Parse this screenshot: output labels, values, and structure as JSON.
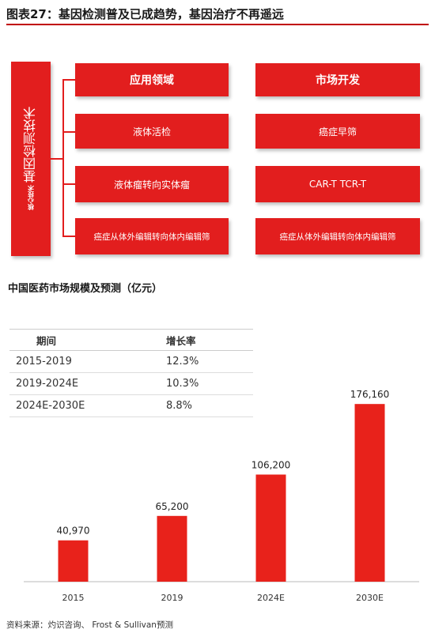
{
  "figure_title": "图表27：基因检测普及已成趋势，基因治疗不再遥远",
  "diagram": {
    "side_label_small": "核心技术",
    "side_label": "基因检测技术",
    "col1_header": "应用领域",
    "col2_header": "市场开发",
    "rows": [
      {
        "left": "液体活检",
        "right": "癌症早筛"
      },
      {
        "left": "液体瘤转向实体瘤",
        "right": "CAR-T   TCR-T"
      },
      {
        "left": "癌症从体外编辑转向体内编辑筛",
        "right": "癌症从体外编辑转向体内编辑筛"
      }
    ]
  },
  "chart_title": "中国医药市场规模及预测（亿元）",
  "growth_table": {
    "headers": [
      "期间",
      "增长率"
    ],
    "rows": [
      {
        "period": "2015-2019",
        "rate": "12.3%"
      },
      {
        "period": "2019-2024E",
        "rate": "10.3%"
      },
      {
        "period": "2024E-2030E",
        "rate": "8.8%"
      }
    ]
  },
  "source": "资料来源：灼识咨询、 Frost & Sullivan预测",
  "colors": {
    "accent": "#e21e1e",
    "bar": "#e8221b"
  },
  "chart_data": {
    "type": "bar",
    "title": "中国医药市场规模及预测（亿元）",
    "categories": [
      "2015",
      "2019",
      "2024E",
      "2030E"
    ],
    "values": [
      40970,
      65200,
      106200,
      176160
    ],
    "value_labels": [
      "40,970",
      "65,200",
      "106,200",
      "176,160"
    ],
    "ylim": [
      0,
      210000
    ],
    "grid": false,
    "legend": "none"
  }
}
